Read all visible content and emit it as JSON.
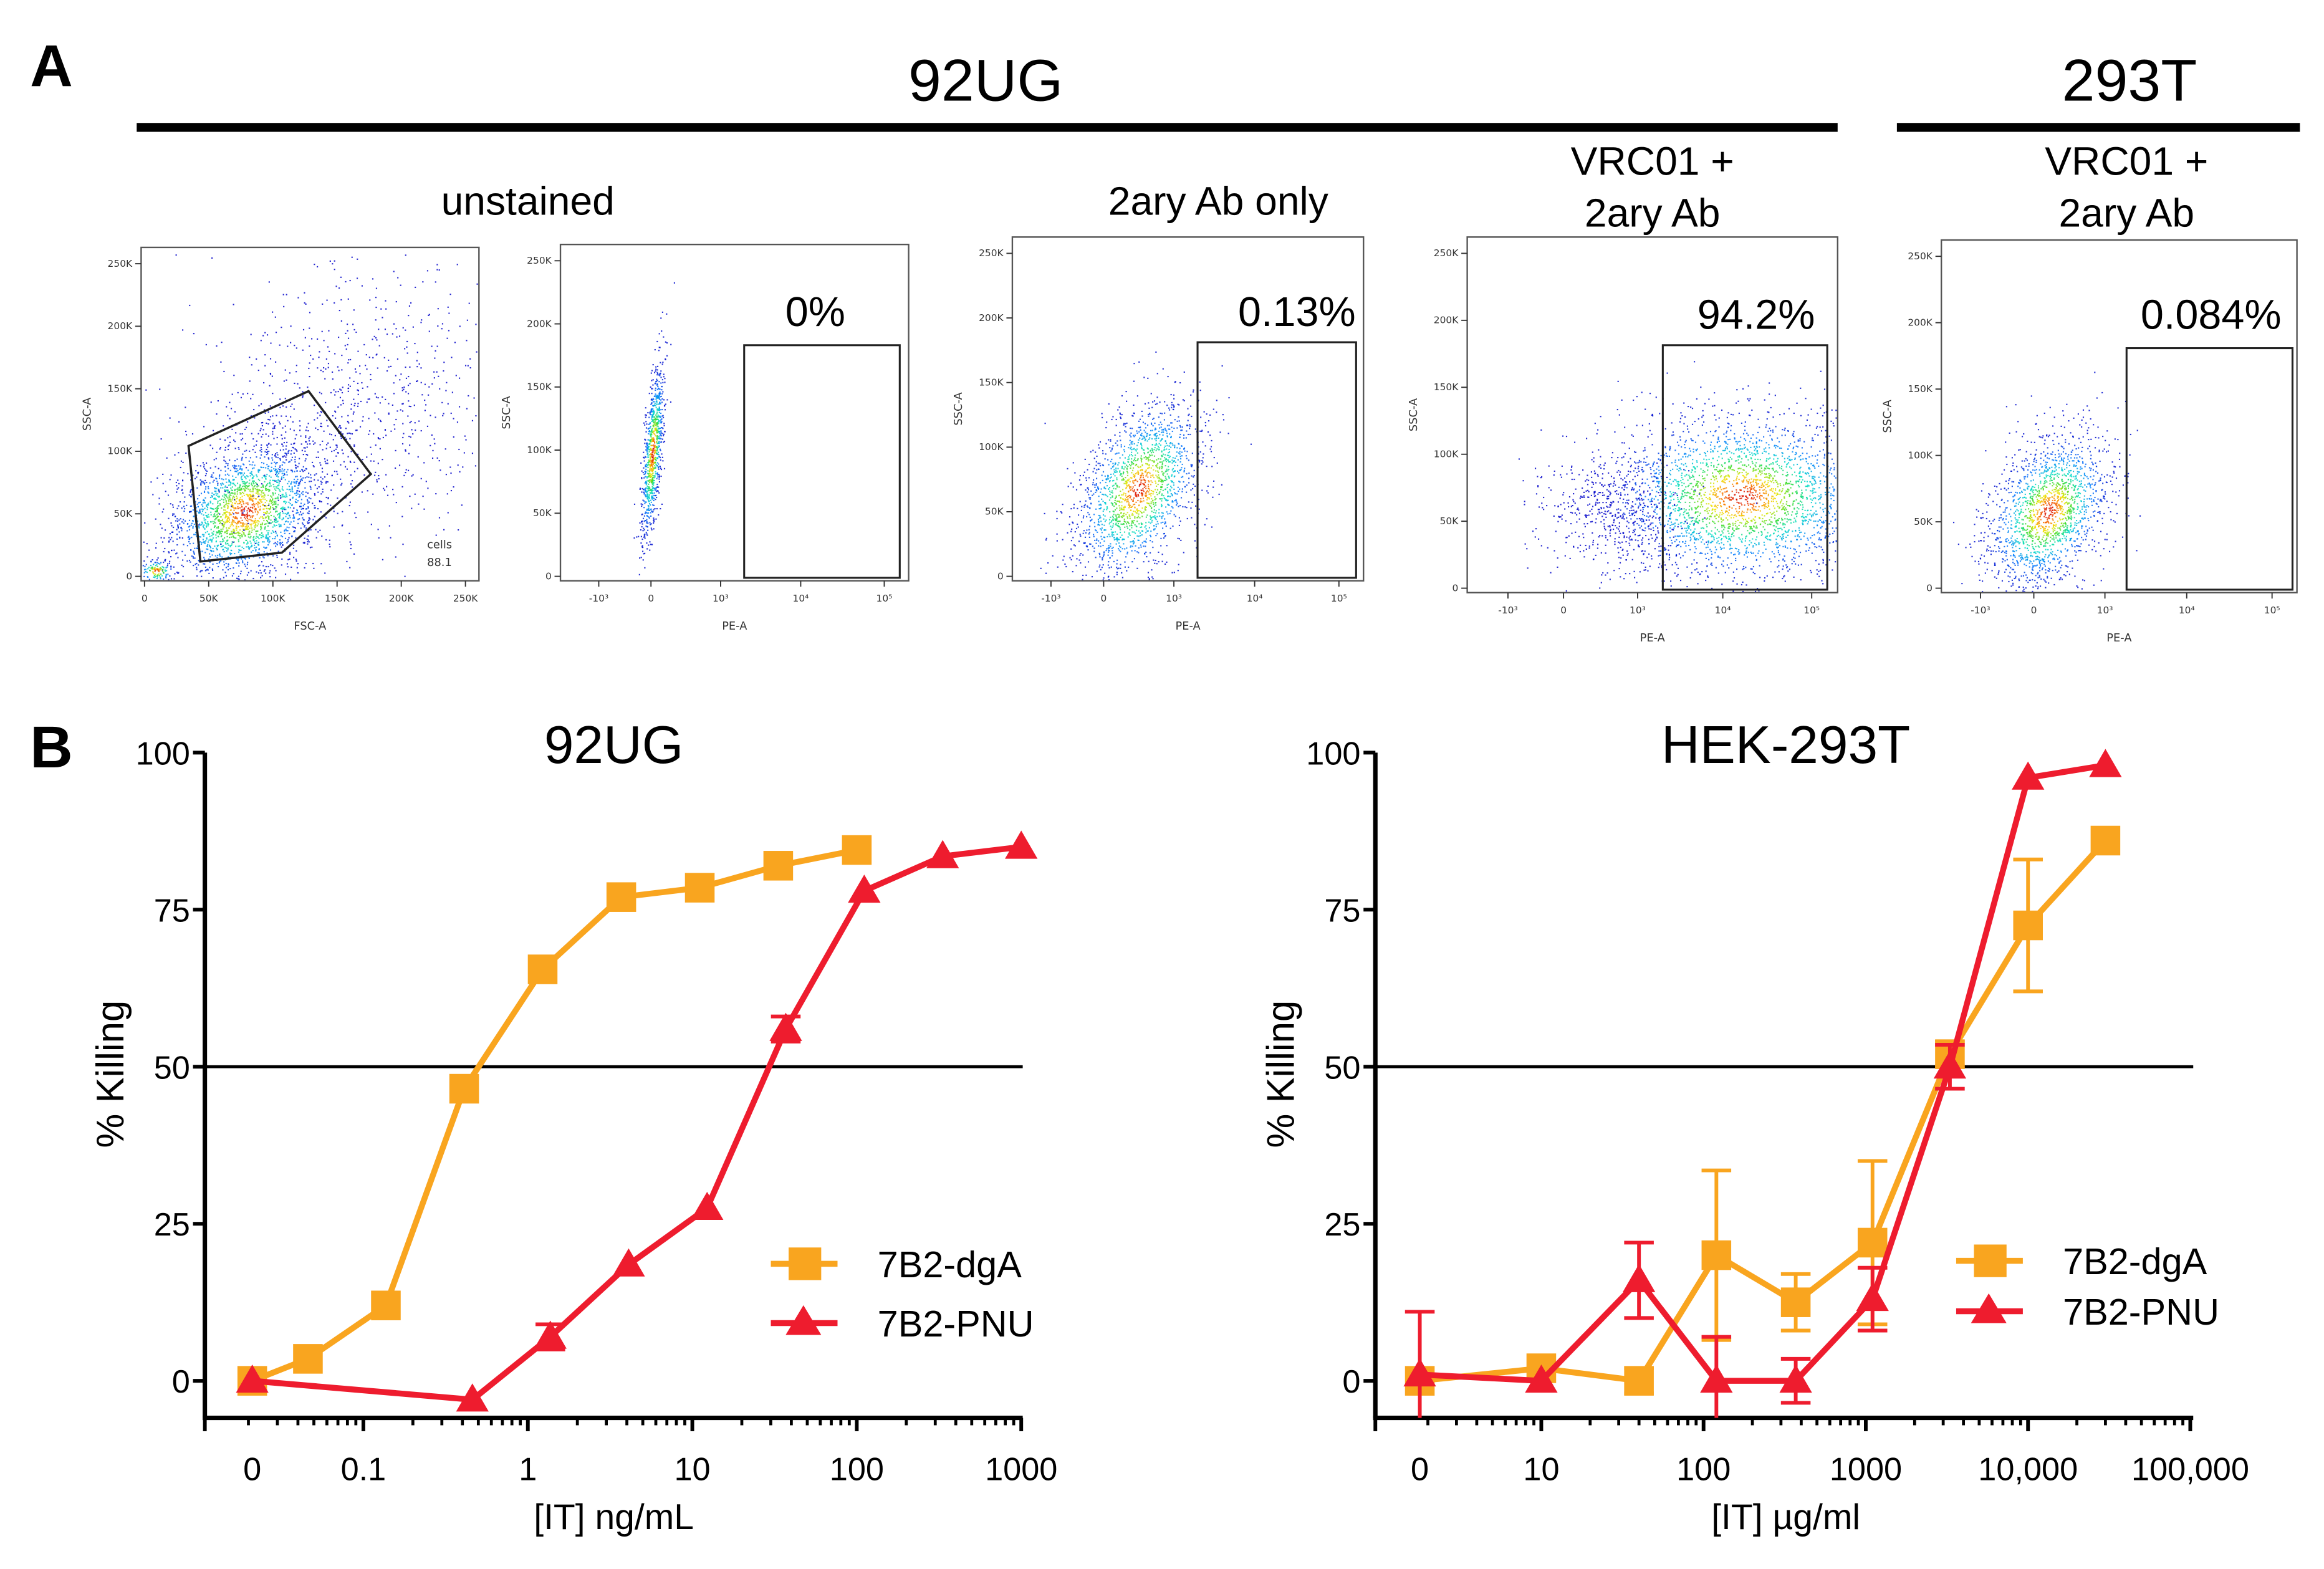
{
  "panel_a": {
    "letter": "A",
    "group_92ug": "92UG",
    "group_293t": "293T",
    "flow_plots": [
      {
        "title": [
          "unstained"
        ],
        "xlabel": "FSC-A",
        "ylabel": "SSC-A",
        "xticks": [
          "0",
          "50K",
          "100K",
          "150K",
          "200K",
          "250K"
        ],
        "yticks": [
          "0",
          "50K",
          "100K",
          "150K",
          "200K",
          "250K"
        ],
        "gate_name": "cells",
        "gate_value": "88.1",
        "percent": ""
      },
      {
        "title": [],
        "xlabel": "PE-A",
        "ylabel": "SSC-A",
        "xticks": [
          "-10³",
          "0",
          "10³",
          "10⁴",
          "10⁵"
        ],
        "yticks": [
          "0",
          "50K",
          "100K",
          "150K",
          "200K",
          "250K"
        ],
        "percent": "0%"
      },
      {
        "title": [
          "2ary Ab only"
        ],
        "xlabel": "PE-A",
        "ylabel": "SSC-A",
        "xticks": [
          "-10³",
          "0",
          "10³",
          "10⁴",
          "10⁵"
        ],
        "yticks": [
          "0",
          "50K",
          "100K",
          "150K",
          "200K",
          "250K"
        ],
        "percent": "0.13%"
      },
      {
        "title": [
          "VRC01 +",
          "2ary Ab"
        ],
        "xlabel": "PE-A",
        "ylabel": "SSC-A",
        "xticks": [
          "-10³",
          "0",
          "10³",
          "10⁴",
          "10⁵"
        ],
        "yticks": [
          "0",
          "50K",
          "100K",
          "150K",
          "200K",
          "250K"
        ],
        "percent": "94.2%"
      },
      {
        "title": [
          "VRC01 +",
          "2ary Ab"
        ],
        "xlabel": "PE-A",
        "ylabel": "SSC-A",
        "xticks": [
          "-10³",
          "0",
          "10³",
          "10⁴",
          "10⁵"
        ],
        "yticks": [
          "0",
          "50K",
          "100K",
          "150K",
          "200K",
          "250K"
        ],
        "percent": "0.084%"
      }
    ]
  },
  "panel_b": {
    "letter": "B"
  },
  "colors": {
    "dgA": "#F9A51F",
    "PNU": "#EE1C2E",
    "axis": "#000000"
  },
  "chart_data": [
    {
      "type": "line",
      "title": "92UG",
      "xlabel": "[IT] ng/mL",
      "ylabel": "% Killing",
      "xscale": "log",
      "xtick_labels": [
        "0",
        "0.1",
        "1",
        "10",
        "100",
        "1000"
      ],
      "xtick_values": [
        0,
        0.1,
        1,
        10,
        100,
        1000
      ],
      "ytick_labels": [
        "0",
        "25",
        "50",
        "75",
        "100"
      ],
      "yticks": [
        0,
        25,
        50,
        75,
        100
      ],
      "ylim": [
        -5,
        100
      ],
      "reference_line": 50,
      "legend": "right-middle",
      "series": [
        {
          "name": "7B2-dgA",
          "marker": "square",
          "color_key": "dgA",
          "x": [
            0,
            0.046,
            0.137,
            0.41,
            1.23,
            3.7,
            11.1,
            33.3,
            100
          ],
          "y": [
            0,
            3.5,
            12,
            46.5,
            65.5,
            77,
            78.5,
            82,
            84.5
          ],
          "err": [
            1,
            1,
            1,
            1,
            1,
            1,
            1,
            1,
            1
          ]
        },
        {
          "name": "7B2-PNU",
          "marker": "triangle",
          "color_key": "PNU",
          "x": [
            0,
            0.46,
            1.37,
            4.1,
            12.3,
            37,
            111,
            333,
            1000
          ],
          "y": [
            0,
            -3,
            7,
            18.5,
            27.5,
            56,
            78,
            83.5,
            85
          ],
          "err": [
            1,
            1.5,
            2,
            1.5,
            1.5,
            2,
            1,
            1,
            1
          ]
        }
      ]
    },
    {
      "type": "line",
      "title": "HEK-293T",
      "xlabel": "[IT] µg/ml",
      "ylabel": "% Killing",
      "xscale": "log",
      "xtick_labels": [
        "0",
        "10",
        "100",
        "1000",
        "10,000",
        "100,000"
      ],
      "xtick_values": [
        0,
        10,
        100,
        1000,
        10000,
        100000
      ],
      "ytick_labels": [
        "0",
        "25",
        "50",
        "75",
        "100"
      ],
      "yticks": [
        0,
        25,
        50,
        75,
        100
      ],
      "ylim": [
        -5,
        100
      ],
      "reference_line": 50,
      "legend": "right-middle",
      "series": [
        {
          "name": "7B2-dgA",
          "marker": "square",
          "color_key": "dgA",
          "x": [
            0,
            10,
            40,
            120,
            370,
            1100,
            3300,
            10000,
            30000
          ],
          "y": [
            0,
            2,
            0,
            20,
            12.5,
            22,
            52,
            72.5,
            86
          ],
          "err": [
            1,
            1,
            2,
            13.5,
            4.5,
            13,
            2,
            10.5,
            1
          ]
        },
        {
          "name": "7B2-PNU",
          "marker": "triangle",
          "color_key": "PNU",
          "x": [
            0,
            10,
            40,
            120,
            370,
            1100,
            3300,
            10000,
            30000
          ],
          "y": [
            1,
            0,
            16,
            0,
            0,
            13,
            50,
            96,
            98
          ],
          "err": [
            10,
            0.5,
            6,
            7,
            3.5,
            5,
            3.5,
            0.5,
            0.5
          ]
        }
      ]
    }
  ]
}
